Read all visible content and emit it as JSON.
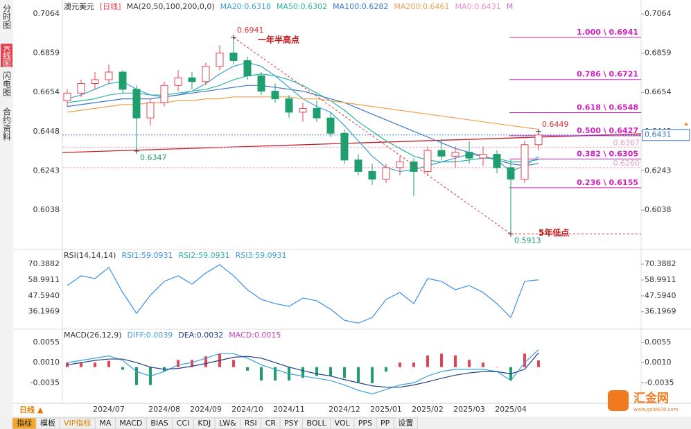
{
  "chart_data": [
    {
      "type": "candlestick",
      "title": "澳元美元",
      "period": "[日线]",
      "ma_label": "MA(20,50,100,200,0,0)",
      "categories": [
        null,
        null,
        null,
        "2024/07",
        null,
        null,
        null,
        "2024/08",
        null,
        null,
        "2024/09",
        null,
        null,
        "2024/10",
        null,
        null,
        "2024/11",
        null,
        null,
        null,
        "2024/12",
        null,
        null,
        "2025/01",
        null,
        null,
        "2025/02",
        null,
        null,
        "2025/03",
        null,
        null,
        "2025/04",
        null,
        null
      ],
      "open": [
        0.661,
        0.665,
        0.67,
        0.672,
        0.676,
        0.667,
        0.652,
        0.66,
        0.669,
        0.673,
        0.671,
        0.679,
        0.686,
        0.682,
        0.674,
        0.666,
        0.662,
        0.655,
        0.657,
        0.652,
        0.644,
        0.63,
        0.624,
        0.62,
        0.626,
        0.629,
        0.624,
        0.635,
        0.632,
        0.634,
        0.631,
        0.633,
        0.626,
        0.62,
        0.638
      ],
      "high": [
        0.667,
        0.672,
        0.676,
        0.68,
        0.677,
        0.669,
        0.662,
        0.671,
        0.677,
        0.676,
        0.681,
        0.69,
        0.6941,
        0.684,
        0.676,
        0.67,
        0.664,
        0.66,
        0.661,
        0.655,
        0.646,
        0.633,
        0.628,
        0.628,
        0.632,
        0.631,
        0.637,
        0.641,
        0.637,
        0.64,
        0.637,
        0.635,
        0.63,
        0.64,
        0.6449
      ],
      "low": [
        0.658,
        0.663,
        0.667,
        0.67,
        0.665,
        0.6347,
        0.648,
        0.658,
        0.666,
        0.667,
        0.669,
        0.677,
        0.68,
        0.672,
        0.664,
        0.66,
        0.652,
        0.65,
        0.65,
        0.642,
        0.628,
        0.622,
        0.617,
        0.618,
        0.622,
        0.611,
        0.622,
        0.63,
        0.626,
        0.628,
        0.627,
        0.623,
        0.5913,
        0.618,
        0.635
      ],
      "close": [
        0.665,
        0.67,
        0.672,
        0.676,
        0.667,
        0.652,
        0.66,
        0.669,
        0.673,
        0.671,
        0.679,
        0.686,
        0.682,
        0.674,
        0.666,
        0.662,
        0.655,
        0.657,
        0.652,
        0.644,
        0.63,
        0.624,
        0.62,
        0.626,
        0.629,
        0.624,
        0.635,
        0.632,
        0.634,
        0.631,
        0.633,
        0.626,
        0.62,
        0.638,
        0.6431
      ],
      "up_color": "#e8414f",
      "down_color": "#1f9e6e",
      "series": [
        {
          "name": "MA20:0.6318",
          "color": "#3aa0d8",
          "values": [
            0.662,
            0.664,
            0.667,
            0.67,
            0.671,
            0.667,
            0.664,
            0.663,
            0.664,
            0.666,
            0.67,
            0.675,
            0.679,
            0.681,
            0.679,
            0.674,
            0.668,
            0.662,
            0.658,
            0.655,
            0.648,
            0.64,
            0.632,
            0.626,
            0.624,
            0.625,
            0.627,
            0.629,
            0.631,
            0.633,
            0.632,
            0.63,
            0.624,
            0.627,
            0.6318
          ]
        },
        {
          "name": "MA50:0.6302",
          "color": "#2bb5a0",
          "values": [
            0.66,
            0.661,
            0.662,
            0.664,
            0.665,
            0.665,
            0.664,
            0.664,
            0.665,
            0.666,
            0.667,
            0.669,
            0.672,
            0.674,
            0.675,
            0.674,
            0.672,
            0.669,
            0.665,
            0.661,
            0.656,
            0.65,
            0.645,
            0.64,
            0.636,
            0.632,
            0.63,
            0.629,
            0.629,
            0.63,
            0.631,
            0.631,
            0.629,
            0.629,
            0.6302
          ]
        },
        {
          "name": "MA100:0.6282",
          "color": "#3b78c4",
          "values": [
            0.658,
            0.659,
            0.66,
            0.661,
            0.662,
            0.662,
            0.662,
            0.663,
            0.664,
            0.665,
            0.666,
            0.667,
            0.668,
            0.669,
            0.669,
            0.668,
            0.667,
            0.666,
            0.664,
            0.662,
            0.66,
            0.657,
            0.654,
            0.651,
            0.648,
            0.645,
            0.642,
            0.639,
            0.636,
            0.634,
            0.632,
            0.63,
            0.628,
            0.627,
            0.6282
          ]
        },
        {
          "name": "MA200:0.6461",
          "color": "#f0a050",
          "values": [
            0.655,
            0.656,
            0.657,
            0.658,
            0.659,
            0.659,
            0.66,
            0.66,
            0.661,
            0.661,
            0.662,
            0.662,
            0.663,
            0.663,
            0.663,
            0.663,
            0.663,
            0.662,
            0.662,
            0.661,
            0.66,
            0.659,
            0.658,
            0.657,
            0.656,
            0.655,
            0.654,
            0.653,
            0.652,
            0.651,
            0.65,
            0.649,
            0.648,
            0.647,
            0.6461
          ]
        }
      ],
      "legend_extra": [
        {
          "name": "MA0:0.6431",
          "color": "#f090d0"
        },
        {
          "name": "M",
          "color": "#c070e0"
        }
      ],
      "ylim": [
        0.5839,
        0.7108
      ],
      "yticks": [
        0.7064,
        0.6859,
        0.6654,
        0.6448,
        0.6243,
        0.6038
      ],
      "grid": false,
      "annotations": [
        {
          "value": 0.6941,
          "note": "一年半高点"
        },
        {
          "value": 0.6347
        },
        {
          "value": 0.5913,
          "note": "5年低点"
        },
        {
          "value": 0.6449
        }
      ],
      "fib": [
        {
          "value": 0.6941,
          "label": "1.000 \\ 0.6941"
        },
        {
          "value": 0.6721,
          "label": "0.786 \\ 0.6721"
        },
        {
          "value": 0.6548,
          "label": "0.618 \\ 0.6548"
        },
        {
          "value": 0.6427,
          "label": "0.500 \\ 0.6427"
        },
        {
          "value": 0.6305,
          "label": "0.382 \\ 0.6305"
        },
        {
          "value": 0.6155,
          "label": "0.236 \\ 0.6155"
        }
      ],
      "hlines": [
        0.6367,
        {
          "value": 0.626,
          "label": "0.6260"
        }
      ],
      "trendline": [
        0.6339,
        0.6437
      ],
      "last": 0.6431
    },
    {
      "type": "line",
      "title": "RSI(14,14,14)",
      "series": [
        {
          "name": "RSI1:59.0931",
          "color": "#3a8ee6",
          "values": [
            55,
            62,
            60,
            68,
            50,
            35,
            48,
            58,
            62,
            56,
            64,
            70,
            62,
            52,
            45,
            42,
            40,
            46,
            44,
            38,
            30,
            28,
            32,
            45,
            50,
            42,
            60,
            58,
            52,
            55,
            50,
            42,
            32,
            58,
            59.0931
          ]
        }
      ],
      "legend_extra": [
        {
          "name": "RSI2:59.0931",
          "color": "#2bb5a0"
        },
        {
          "name": "RSI3:59.0931",
          "color": "#3aa0d8"
        }
      ],
      "ylim": [
        26.1,
        78.4
      ],
      "yticks": [
        70.3882,
        58.9911,
        {
          "value": 47.594,
          "label": "47.5940"
        },
        36.1969
      ]
    },
    {
      "type": "macd",
      "title": "MACD(26,12,9)",
      "series": [
        {
          "name": "DIFF:0.0039",
          "color": "#3aa0d8",
          "values": [
            0.001,
            0.0015,
            0.002,
            0.0025,
            0.0015,
            -0.001,
            -0.002,
            -0.001,
            0.0005,
            0.001,
            0.002,
            0.003,
            0.003,
            0.002,
            0.0005,
            -0.0005,
            -0.0015,
            -0.002,
            -0.0025,
            -0.003,
            -0.004,
            -0.0052,
            -0.006,
            -0.005,
            -0.004,
            -0.0035,
            -0.002,
            -0.001,
            -0.0005,
            -0.0005,
            -0.0005,
            -0.001,
            -0.003,
            0.001,
            0.0039
          ]
        },
        {
          "name": "DEA:0.0032",
          "color": "#1d3f8a",
          "values": [
            0.0005,
            0.001,
            0.0015,
            0.0018,
            0.0018,
            0.001,
            0,
            -0.0005,
            -0.0003,
            0.0002,
            0.0008,
            0.0015,
            0.0022,
            0.0024,
            0.002,
            0.001,
            0,
            -0.0008,
            -0.0015,
            -0.002,
            -0.0028,
            -0.0035,
            -0.0042,
            -0.0045,
            -0.0045,
            -0.004,
            -0.0033,
            -0.0025,
            -0.0018,
            -0.0013,
            -0.001,
            -0.001,
            -0.0015,
            -0.0005,
            0.0032
          ]
        }
      ],
      "bars": {
        "name": "MACD:0.0015",
        "up_color": "#e8414f",
        "down_color": "#1f9e6e",
        "values": [
          0.001,
          0.001,
          0.001,
          0.0014,
          -0.0006,
          -0.004,
          -0.004,
          -0.001,
          0.0016,
          0.0016,
          0.0024,
          0.003,
          0.0016,
          -0.0008,
          -0.003,
          -0.003,
          -0.003,
          -0.0024,
          -0.002,
          -0.002,
          -0.0024,
          -0.0034,
          -0.0036,
          -0.001,
          0.001,
          0.001,
          0.0026,
          0.003,
          0.0026,
          0.0016,
          0.001,
          0,
          -0.003,
          0.003,
          0.0015
        ]
      },
      "ylim": [
        -0.0078,
        0.0077
      ],
      "yticks": [
        0.0055,
        {
          "value": 0.001,
          "label": "0.0010"
        },
        -0.0035
      ]
    }
  ],
  "sidebar": [
    "分时图",
    "K线图",
    "闪电图",
    "合约资料"
  ],
  "period_button": "日线 ▲",
  "toolbar": [
    "指标",
    "模板",
    "VIP指标",
    "MA",
    "MACD",
    "BIAS",
    "CCI",
    "KDJ",
    "LW&",
    "RSI",
    "CR",
    "PSY",
    "BOLL",
    "VOL",
    "PPS",
    "PP",
    "设置"
  ],
  "logo": {
    "name": "汇金网",
    "url": "www.gold678.com"
  }
}
